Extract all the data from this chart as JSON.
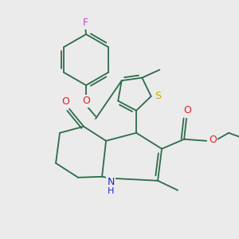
{
  "background_color": "#ebebeb",
  "bond_color": "#2d6b4a",
  "atom_colors": {
    "F": "#cc44cc",
    "O": "#dd2222",
    "S": "#ccaa00",
    "N": "#2222cc",
    "C": "#2d6b4a",
    "H": "#2d6b4a"
  },
  "font_size": 8.5,
  "figsize": [
    3.0,
    3.0
  ],
  "dpi": 100
}
